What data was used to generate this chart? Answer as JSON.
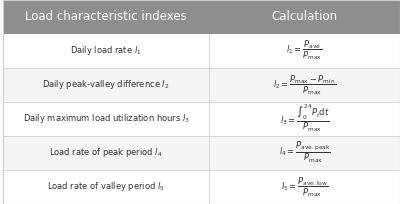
{
  "header_col1": "Load characteristic indexes",
  "header_col2": "Calculation",
  "header_bg": "#8e8e8e",
  "header_text_color": "#ffffff",
  "row_bg_odd": "#f5f5f5",
  "row_bg_even": "#ffffff",
  "border_color": "#cccccc",
  "text_color": "#333333",
  "rows": [
    {
      "label": "Daily load rate $\\mathit{l}_1$",
      "formula": "$\\mathit{l}_1 = \\dfrac{P_{\\mathrm{ave}}}{P_{\\mathrm{max}}}$"
    },
    {
      "label": "Daily peak-valley difference $\\mathit{l}_2$",
      "formula": "$\\mathit{l}_2 = \\dfrac{P_{\\mathrm{max}}-P_{\\mathrm{min}}}{P_{\\mathrm{max}}}$"
    },
    {
      "label": "Daily maximum load utilization hours $\\mathit{l}_3$",
      "formula": "$\\mathit{l}_3 = \\dfrac{\\int_{0}^{24} P_t \\mathrm{d}t}{P_{\\mathrm{max}}}$"
    },
    {
      "label": "Load rate of peak period $\\mathit{l}_4$",
      "formula": "$\\mathit{l}_4 = \\dfrac{P_{\\mathrm{ave.peak}}}{P_{\\mathrm{max}}}$"
    },
    {
      "label": "Load rate of valley period $\\mathit{l}_5$",
      "formula": "$\\mathit{l}_5 = \\dfrac{P_{\\mathrm{ave.low}}}{P_{\\mathrm{max}}}$"
    }
  ],
  "figsize": [
    4.0,
    2.04
  ],
  "dpi": 100
}
